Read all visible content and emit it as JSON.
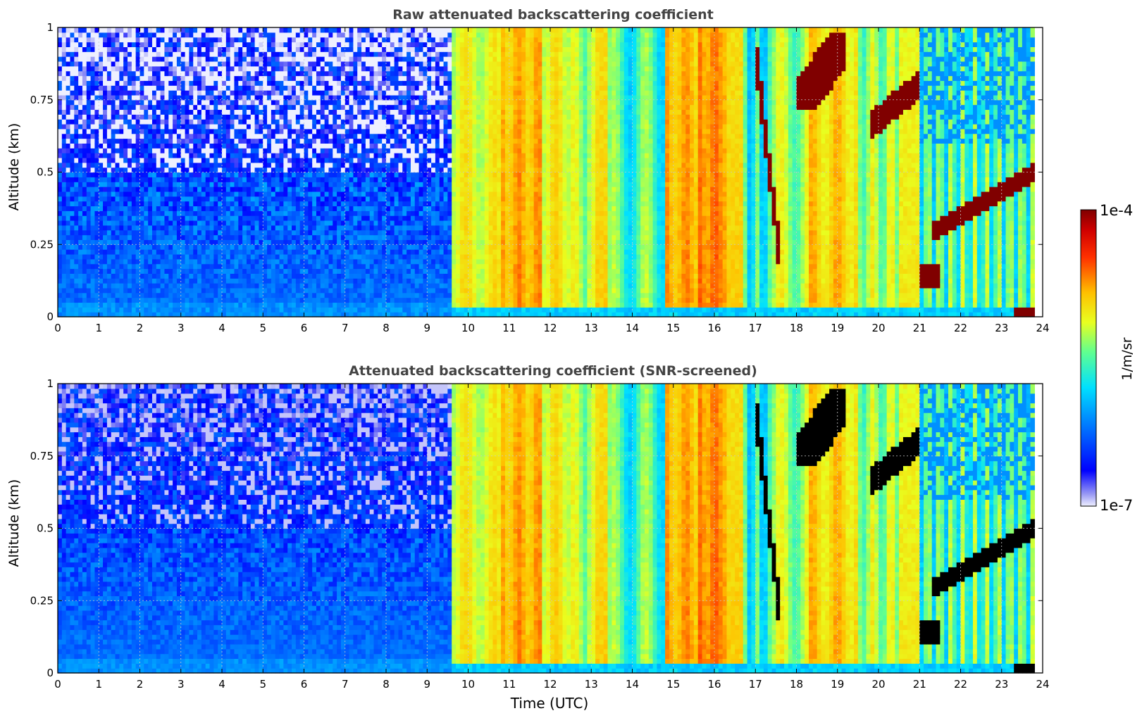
{
  "figure": {
    "x_axis_label": "Time (UTC)",
    "colorbar": {
      "label": "1/m/sr",
      "top_label": "1e-4",
      "bottom_label": "1e-7",
      "colormap": "jet",
      "scale": "log",
      "range": [
        1e-07,
        0.0001
      ]
    }
  },
  "chart_data": [
    {
      "type": "heatmap",
      "title": "Raw attenuated backscattering coefficient",
      "xlabel": "",
      "ylabel": "Altitude (km)",
      "xlim": [
        0,
        24
      ],
      "ylim": [
        0,
        1
      ],
      "xticks": [
        "0",
        "1",
        "2",
        "3",
        "4",
        "5",
        "6",
        "7",
        "8",
        "9",
        "10",
        "11",
        "12",
        "13",
        "14",
        "15",
        "16",
        "17",
        "18",
        "19",
        "20",
        "21",
        "22",
        "23",
        "24"
      ],
      "yticks": [
        "0",
        "0.25",
        "0.5",
        "0.75",
        "1"
      ],
      "ytick_values": [
        0,
        0.25,
        0.5,
        0.75,
        1
      ],
      "grid": true,
      "color_scale": "log 1e-7 to 1e-4 1/m/sr (jet)",
      "screened": false,
      "data_end_hour": 23.8
    },
    {
      "type": "heatmap",
      "title": "Attenuated backscattering coefficient (SNR-screened)",
      "xlabel": "Time (UTC)",
      "ylabel": "Altitude (km)",
      "xlim": [
        0,
        24
      ],
      "ylim": [
        0,
        1
      ],
      "xticks": [
        "0",
        "1",
        "2",
        "3",
        "4",
        "5",
        "6",
        "7",
        "8",
        "9",
        "10",
        "11",
        "12",
        "13",
        "14",
        "15",
        "16",
        "17",
        "18",
        "19",
        "20",
        "21",
        "22",
        "23",
        "24"
      ],
      "yticks": [
        "0",
        "0.25",
        "0.5",
        "0.75",
        "1"
      ],
      "ytick_values": [
        0,
        0.25,
        0.5,
        0.75,
        1
      ],
      "grid": true,
      "color_scale": "log 1e-7 to 1e-4 1/m/sr (jet)",
      "screened": true,
      "screened_color": "#000000",
      "data_end_hour": 23.8
    }
  ]
}
